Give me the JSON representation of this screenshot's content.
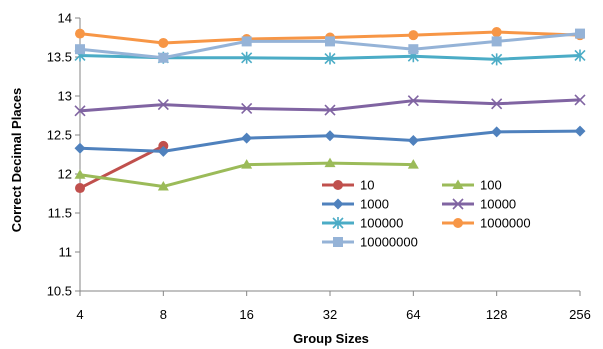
{
  "chart_data": {
    "type": "line",
    "xlabel": "Group Sizes",
    "ylabel": "Correct Decimal Places",
    "categories": [
      "4",
      "8",
      "16",
      "32",
      "64",
      "128",
      "256"
    ],
    "yticks": [
      "10.5",
      "11",
      "11.5",
      "12",
      "12.5",
      "13",
      "13.5",
      "14"
    ],
    "ylim": [
      10.5,
      14
    ],
    "grid": false,
    "legend_position": "center-right",
    "series": [
      {
        "name": "10",
        "color": "#c0504d",
        "marker": "circle",
        "values": [
          11.82,
          12.36,
          null,
          null,
          null,
          null,
          null
        ]
      },
      {
        "name": "100",
        "color": "#9bbb59",
        "marker": "triangle",
        "values": [
          11.99,
          11.84,
          12.12,
          12.14,
          12.12,
          null,
          null
        ]
      },
      {
        "name": "1000",
        "color": "#4f81bd",
        "marker": "diamond",
        "values": [
          12.33,
          12.29,
          12.46,
          12.49,
          12.43,
          12.54,
          12.55
        ]
      },
      {
        "name": "10000",
        "color": "#8064a2",
        "marker": "x",
        "values": [
          12.81,
          12.89,
          12.84,
          12.82,
          12.94,
          12.9,
          12.95
        ]
      },
      {
        "name": "100000",
        "color": "#4bacc6",
        "marker": "asterisk",
        "values": [
          13.52,
          13.49,
          13.49,
          13.48,
          13.51,
          13.47,
          13.52
        ]
      },
      {
        "name": "1000000",
        "color": "#f79646",
        "marker": "circle",
        "values": [
          13.8,
          13.68,
          13.73,
          13.75,
          13.78,
          13.82,
          13.78
        ]
      },
      {
        "name": "10000000",
        "color": "#95b3d7",
        "marker": "square",
        "values": [
          13.6,
          13.49,
          13.7,
          13.7,
          13.6,
          13.7,
          13.8
        ]
      }
    ]
  }
}
